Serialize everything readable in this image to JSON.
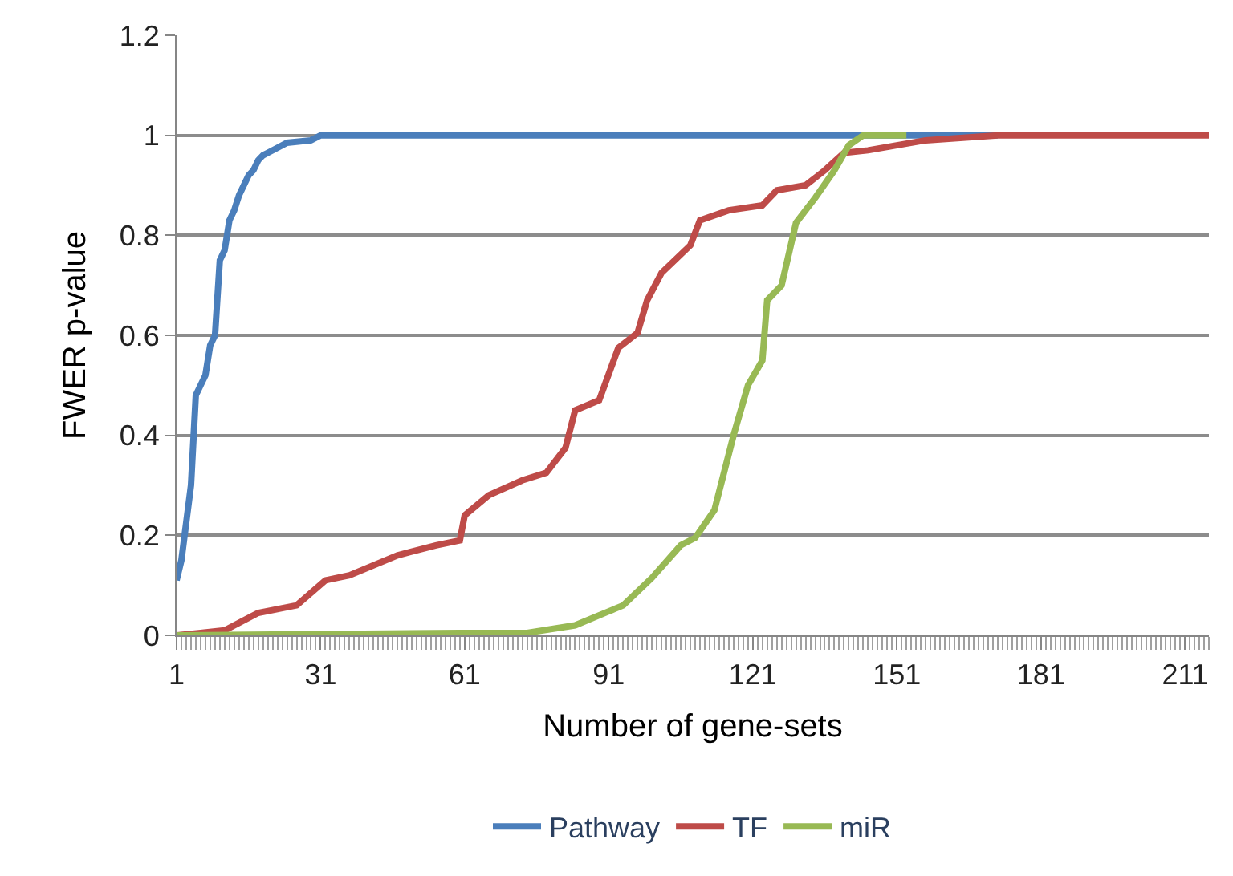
{
  "chart_data": {
    "type": "line",
    "xlabel": "Number of gene-sets",
    "ylabel": "FWER p-value",
    "xlim": [
      1,
      216
    ],
    "xticks": [
      1,
      31,
      61,
      91,
      121,
      151,
      181,
      211
    ],
    "ylim": [
      0,
      1.2
    ],
    "yticks": [
      {
        "value": 0,
        "label": "0"
      },
      0.2,
      0.4,
      0.6,
      0.8,
      {
        "value": 1,
        "label": "1"
      },
      1.2
    ],
    "grid": "y",
    "legend": "bottom",
    "marker": "none",
    "line_style": "solid",
    "series": [
      {
        "name": "Pathway",
        "color": "#4a7ebb",
        "x": [
          1,
          2,
          4,
          5,
          6,
          7,
          8,
          9,
          10,
          11,
          12,
          13,
          14,
          15,
          16,
          17,
          18,
          19,
          20,
          22,
          24,
          29,
          31,
          172
        ],
        "values": [
          0.11,
          0.15,
          0.3,
          0.48,
          0.5,
          0.52,
          0.58,
          0.6,
          0.75,
          0.77,
          0.83,
          0.85,
          0.88,
          0.9,
          0.92,
          0.93,
          0.95,
          0.96,
          0.965,
          0.975,
          0.985,
          0.99,
          1,
          1
        ]
      },
      {
        "name": "TF",
        "color": "#be4b48",
        "x": [
          1,
          6,
          11,
          18,
          26,
          32,
          37,
          47,
          55,
          60,
          61,
          66,
          73,
          78,
          82,
          84,
          89,
          93,
          97,
          99,
          102,
          108,
          110,
          116,
          123,
          126,
          132,
          136,
          140,
          145,
          151,
          157,
          172,
          216
        ],
        "values": [
          0,
          0.005,
          0.01,
          0.045,
          0.06,
          0.11,
          0.12,
          0.16,
          0.18,
          0.19,
          0.24,
          0.28,
          0.31,
          0.325,
          0.375,
          0.45,
          0.47,
          0.575,
          0.605,
          0.67,
          0.725,
          0.78,
          0.83,
          0.85,
          0.86,
          0.89,
          0.9,
          0.93,
          0.965,
          0.97,
          0.98,
          0.99,
          1,
          1
        ]
      },
      {
        "name": "miR",
        "color": "#98b954",
        "x": [
          1,
          60,
          74,
          84,
          94,
          100,
          106,
          109,
          113,
          117,
          120,
          123,
          124,
          127,
          130,
          134,
          138,
          141,
          144,
          153
        ],
        "values": [
          0,
          0.005,
          0.005,
          0.02,
          0.06,
          0.115,
          0.18,
          0.195,
          0.25,
          0.4,
          0.5,
          0.55,
          0.67,
          0.7,
          0.825,
          0.875,
          0.93,
          0.98,
          1,
          1
        ]
      }
    ]
  }
}
